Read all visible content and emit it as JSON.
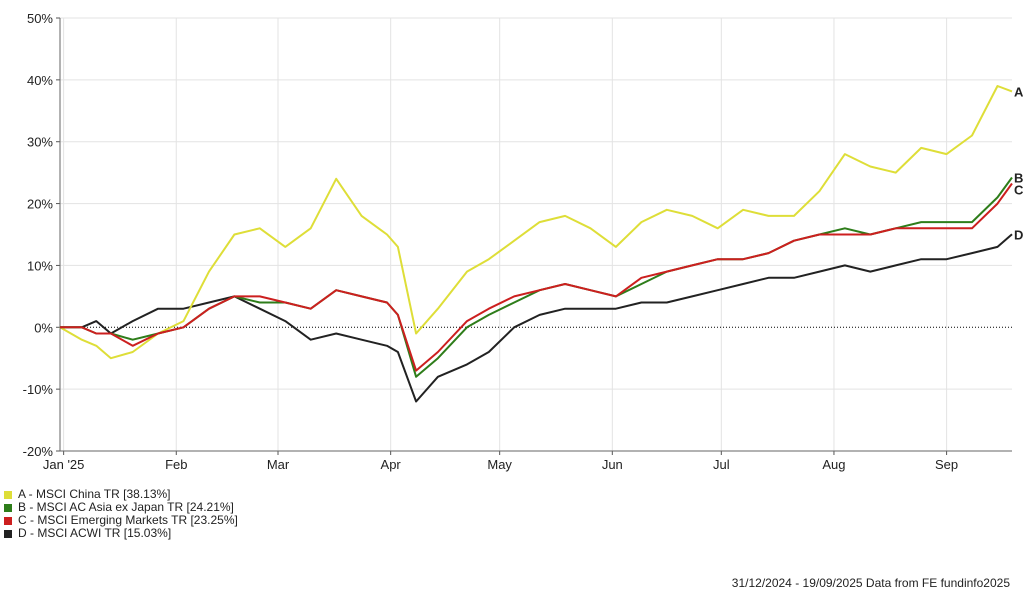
{
  "chart_data": {
    "type": "line",
    "title": "",
    "xlabel": "",
    "ylabel": "",
    "ylim": [
      -20,
      50
    ],
    "y_ticks": [
      -20,
      -10,
      0,
      10,
      20,
      30,
      40,
      50
    ],
    "y_tick_labels": [
      "-20%",
      "-10%",
      "0%",
      "10%",
      "20%",
      "30%",
      "40%",
      "50%"
    ],
    "x_tick_labels": [
      "Jan '25",
      "Feb",
      "Mar",
      "Apr",
      "May",
      "Jun",
      "Jul",
      "Aug",
      "Sep"
    ],
    "x_tick_dates": [
      "2025-01-01",
      "2025-02-01",
      "2025-03-01",
      "2025-04-01",
      "2025-05-01",
      "2025-06-01",
      "2025-07-01",
      "2025-08-01",
      "2025-09-01"
    ],
    "x_range": [
      "2024-12-31",
      "2025-09-19"
    ],
    "grid": true,
    "zero_line": "dotted",
    "legend_position": "bottom-left",
    "x": [
      "2024-12-31",
      "2025-01-06",
      "2025-01-10",
      "2025-01-14",
      "2025-01-20",
      "2025-01-27",
      "2025-02-03",
      "2025-02-10",
      "2025-02-17",
      "2025-02-24",
      "2025-03-03",
      "2025-03-10",
      "2025-03-17",
      "2025-03-24",
      "2025-03-31",
      "2025-04-03",
      "2025-04-08",
      "2025-04-14",
      "2025-04-22",
      "2025-04-28",
      "2025-05-05",
      "2025-05-12",
      "2025-05-19",
      "2025-05-26",
      "2025-06-02",
      "2025-06-09",
      "2025-06-16",
      "2025-06-23",
      "2025-06-30",
      "2025-07-07",
      "2025-07-14",
      "2025-07-21",
      "2025-07-28",
      "2025-08-04",
      "2025-08-11",
      "2025-08-18",
      "2025-08-25",
      "2025-09-01",
      "2025-09-08",
      "2025-09-15",
      "2025-09-19"
    ],
    "series": [
      {
        "name": "A - MSCI China TR [38.13%]",
        "end_label": "A",
        "color": "#dede38",
        "values": [
          0,
          -2,
          -3,
          -5,
          -4,
          -1,
          1,
          9,
          15,
          16,
          13,
          16,
          24,
          18,
          15,
          13,
          -1,
          3,
          9,
          11,
          14,
          17,
          18,
          16,
          13,
          17,
          19,
          18,
          16,
          19,
          18,
          18,
          22,
          28,
          26,
          25,
          29,
          28,
          31,
          39,
          38.13
        ]
      },
      {
        "name": "B - MSCI AC Asia ex Japan TR [24.21%]",
        "end_label": "B",
        "color": "#2e7d1a",
        "values": [
          0,
          0,
          -1,
          -1,
          -2,
          -1,
          0,
          3,
          5,
          4,
          4,
          3,
          6,
          5,
          4,
          2,
          -8,
          -5,
          0,
          2,
          4,
          6,
          7,
          6,
          5,
          7,
          9,
          10,
          11,
          11,
          12,
          14,
          15,
          16,
          15,
          16,
          17,
          17,
          17,
          21,
          24.21
        ]
      },
      {
        "name": "C - MSCI Emerging Markets TR [23.25%]",
        "end_label": "C",
        "color": "#cc1f1f",
        "values": [
          0,
          0,
          -1,
          -1,
          -3,
          -1,
          0,
          3,
          5,
          5,
          4,
          3,
          6,
          5,
          4,
          2,
          -7,
          -4,
          1,
          3,
          5,
          6,
          7,
          6,
          5,
          8,
          9,
          10,
          11,
          11,
          12,
          14,
          15,
          15,
          15,
          16,
          16,
          16,
          16,
          20,
          23.25
        ]
      },
      {
        "name": "D - MSCI ACWI TR [15.03%]",
        "end_label": "D",
        "color": "#222222",
        "values": [
          0,
          0,
          1,
          -1,
          1,
          3,
          3,
          4,
          5,
          3,
          1,
          -2,
          -1,
          -2,
          -3,
          -4,
          -12,
          -8,
          -6,
          -4,
          0,
          2,
          3,
          3,
          3,
          4,
          4,
          5,
          6,
          7,
          8,
          8,
          9,
          10,
          9,
          10,
          11,
          11,
          12,
          13,
          15.03
        ]
      }
    ]
  },
  "legend": {
    "items": [
      {
        "label": "A - MSCI China TR [38.13%]",
        "color": "#dede38"
      },
      {
        "label": "B - MSCI AC Asia ex Japan TR [24.21%]",
        "color": "#2e7d1a"
      },
      {
        "label": "C - MSCI Emerging Markets TR [23.25%]",
        "color": "#cc1f1f"
      },
      {
        "label": "D - MSCI ACWI TR [15.03%]",
        "color": "#222222"
      }
    ]
  },
  "footer": {
    "text": "31/12/2024 - 19/09/2025 Data from FE fundinfo2025"
  }
}
